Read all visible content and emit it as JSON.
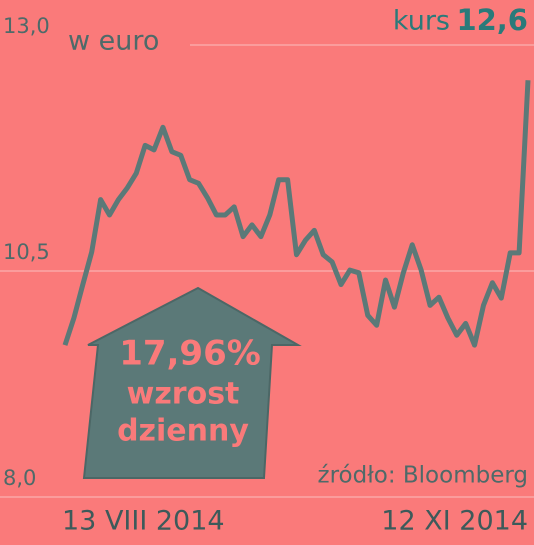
{
  "chart_data": {
    "type": "line",
    "unit_label": "w euro",
    "headline_label": "kurs",
    "headline_value": "12,6",
    "annotation": {
      "value": "17,96%",
      "lines": [
        "wzrost",
        "dzienny"
      ]
    },
    "source": "źródło: Bloomberg",
    "categories": [
      "13 VIII 2014",
      null,
      null,
      null,
      null,
      null,
      null,
      null,
      null,
      null,
      null,
      null,
      null,
      null,
      null,
      null,
      null,
      null,
      null,
      null,
      null,
      null,
      null,
      null,
      null,
      null,
      null,
      null,
      null,
      null,
      null,
      null,
      null,
      null,
      null,
      null,
      null,
      null,
      null,
      null,
      null,
      null,
      null,
      null,
      null,
      null,
      null,
      null,
      null,
      null,
      null,
      null,
      "12 XI 2014"
    ],
    "series": [
      {
        "name": "kurs",
        "color": "#5b7978",
        "values": [
          9.68,
          9.98,
          10.35,
          10.71,
          11.29,
          11.12,
          11.29,
          11.42,
          11.58,
          11.89,
          11.84,
          12.09,
          11.82,
          11.78,
          11.51,
          11.47,
          11.31,
          11.12,
          11.12,
          11.21,
          10.88,
          11.01,
          10.88,
          11.12,
          11.51,
          11.51,
          10.68,
          10.84,
          10.95,
          10.68,
          10.6,
          10.35,
          10.51,
          10.48,
          10.01,
          9.9,
          10.4,
          10.1,
          10.48,
          10.79,
          10.51,
          10.12,
          10.21,
          9.98,
          9.79,
          9.92,
          9.68,
          10.12,
          10.37,
          10.2,
          10.7,
          10.7,
          12.61
        ]
      }
    ],
    "ylim": [
      8,
      13
    ],
    "yticks": [
      {
        "value": 8,
        "label": "8,0"
      },
      {
        "value": 10.5,
        "label": "10,5"
      },
      {
        "value": 13,
        "label": "13,0"
      }
    ],
    "grid": true,
    "background": "#fa7a7a"
  }
}
